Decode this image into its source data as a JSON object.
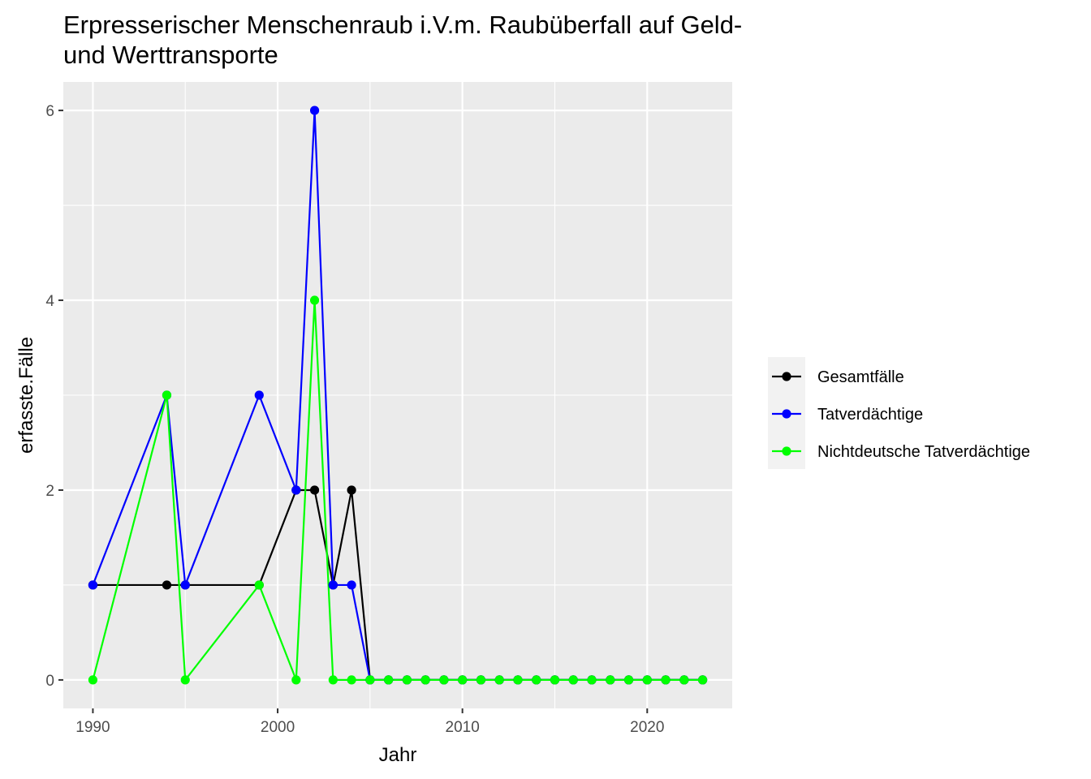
{
  "chart_data": {
    "type": "line",
    "title_lines": [
      "Erpresserischer Menschenraub i.V.m. Raubüberfall auf Geld-",
      "und Werttransporte"
    ],
    "xlabel": "Jahr",
    "ylabel": "erfasste.Fälle",
    "xlim": [
      1988.4,
      2024.6
    ],
    "ylim": [
      -0.3,
      6.3
    ],
    "x_ticks": [
      1990,
      2000,
      2010,
      2020
    ],
    "y_ticks": [
      0,
      2,
      4,
      6
    ],
    "grid": true,
    "legend_position": "right",
    "x": [
      1990,
      1994,
      1995,
      1999,
      2001,
      2002,
      2003,
      2004,
      2005,
      2006,
      2007,
      2008,
      2009,
      2010,
      2011,
      2012,
      2013,
      2014,
      2015,
      2016,
      2017,
      2018,
      2019,
      2020,
      2021,
      2022,
      2023
    ],
    "series": [
      {
        "name": "Gesamtfälle",
        "color": "#000000",
        "values": [
          1,
          1,
          1,
          1,
          2,
          2,
          1,
          2,
          0,
          0,
          0,
          0,
          0,
          0,
          0,
          0,
          0,
          0,
          0,
          0,
          0,
          0,
          0,
          0,
          0,
          0,
          0
        ]
      },
      {
        "name": "Tatverdächtige",
        "color": "#0000ff",
        "values": [
          1,
          3,
          1,
          3,
          2,
          6,
          1,
          1,
          0,
          0,
          0,
          0,
          0,
          0,
          0,
          0,
          0,
          0,
          0,
          0,
          0,
          0,
          0,
          0,
          0,
          0,
          0
        ]
      },
      {
        "name": "Nichtdeutsche Tatverdächtige",
        "color": "#00ff00",
        "values": [
          0,
          3,
          0,
          1,
          0,
          4,
          0,
          0,
          0,
          0,
          0,
          0,
          0,
          0,
          0,
          0,
          0,
          0,
          0,
          0,
          0,
          0,
          0,
          0,
          0,
          0,
          0
        ]
      }
    ],
    "panel_color": "#ebebeb",
    "grid_color": "#ffffff"
  }
}
